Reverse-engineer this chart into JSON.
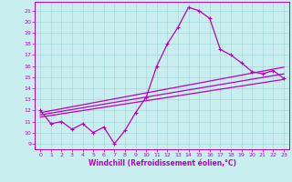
{
  "xlabel": "Windchill (Refroidissement éolien,°C)",
  "background_color": "#c8eef0",
  "line_color": "#bb00bb",
  "grid_color": "#a8d8da",
  "ylim": [
    8.5,
    21.8
  ],
  "xlim": [
    -0.5,
    23.5
  ],
  "yticks": [
    9,
    10,
    11,
    12,
    13,
    14,
    15,
    16,
    17,
    18,
    19,
    20,
    21
  ],
  "xticks": [
    0,
    1,
    2,
    3,
    4,
    5,
    6,
    7,
    8,
    9,
    10,
    11,
    12,
    13,
    14,
    15,
    16,
    17,
    18,
    19,
    20,
    21,
    22,
    23
  ],
  "main_line_x": [
    0,
    1,
    2,
    3,
    4,
    5,
    6,
    7,
    8,
    9,
    10,
    11,
    12,
    13,
    14,
    15,
    16,
    17,
    18,
    19,
    20,
    21,
    22,
    23
  ],
  "main_line_y": [
    12.0,
    10.8,
    11.0,
    10.3,
    10.8,
    10.0,
    10.5,
    9.0,
    10.2,
    11.8,
    13.2,
    16.0,
    18.0,
    19.5,
    21.3,
    21.0,
    20.3,
    17.5,
    17.0,
    16.3,
    15.5,
    15.3,
    15.6,
    14.9
  ],
  "trend_lines": [
    {
      "x0": 0,
      "y0": 11.4,
      "x1": 23,
      "y1": 14.8
    },
    {
      "x0": 0,
      "y0": 11.6,
      "x1": 23,
      "y1": 15.3
    },
    {
      "x0": 0,
      "y0": 11.8,
      "x1": 23,
      "y1": 15.9
    }
  ],
  "marker_size": 3.5,
  "lw": 0.9
}
